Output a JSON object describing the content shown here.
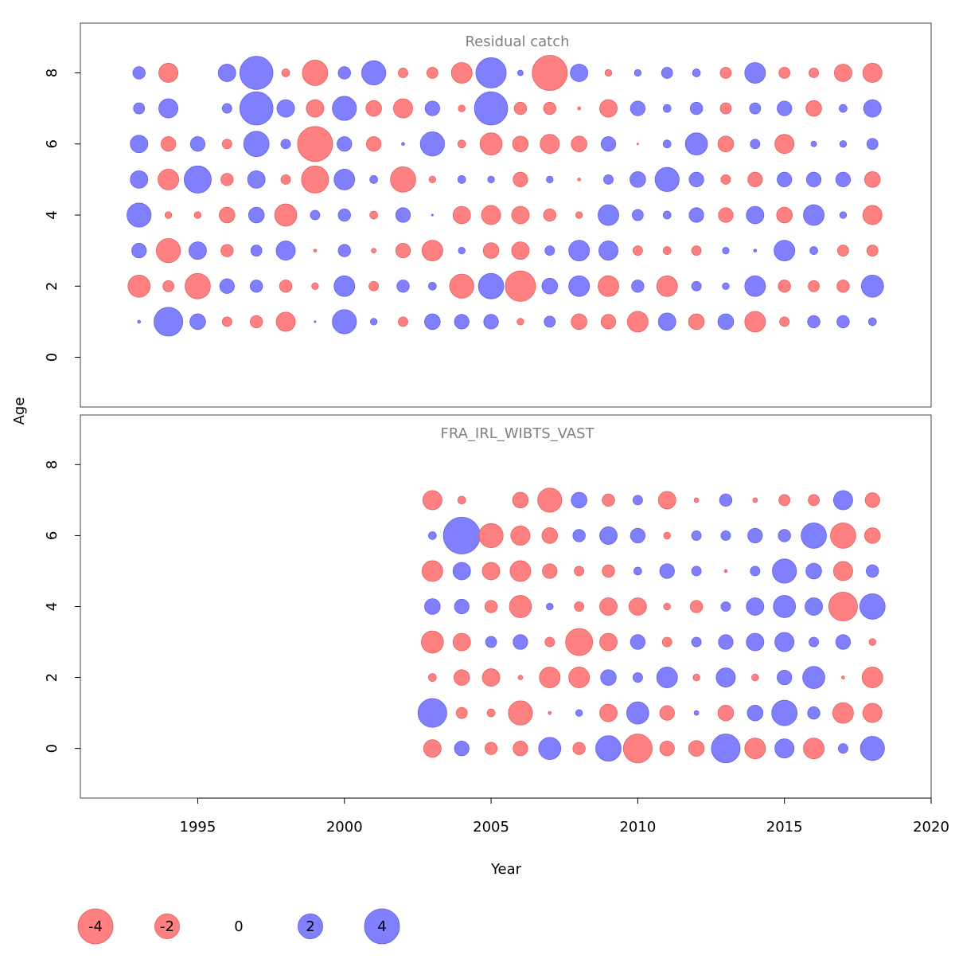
{
  "chart_data": [
    {
      "type": "bubble",
      "title": "Residual catch",
      "x": [
        1993,
        1994,
        1995,
        1996,
        1997,
        1998,
        1999,
        2000,
        2001,
        2002,
        2003,
        2004,
        2005,
        2006,
        2007,
        2008,
        2009,
        2010,
        2011,
        2012,
        2013,
        2014,
        2015,
        2016,
        2017,
        2018
      ],
      "y": [
        1,
        2,
        3,
        4,
        5,
        6,
        7,
        8
      ],
      "values": [
        [
          0.03,
          2.7,
          0.8,
          -0.3,
          -0.5,
          -1.2,
          0.01,
          1.9,
          0.15,
          -0.3,
          0.8,
          0.7,
          0.7,
          -0.15,
          0.4,
          -0.8,
          -0.7,
          -1.4,
          1.0,
          -0.8,
          0.8,
          -1.4,
          -0.3,
          0.5,
          0.5,
          0.2
        ],
        [
          -1.6,
          -0.4,
          -2.1,
          0.7,
          0.5,
          -0.5,
          -0.15,
          1.4,
          -0.3,
          0.5,
          0.2,
          -1.9,
          2.1,
          -3.0,
          0.8,
          1.4,
          -1.4,
          0.5,
          -1.4,
          0.3,
          0.15,
          1.4,
          -0.5,
          -0.4,
          -0.5,
          1.6
        ],
        [
          0.7,
          -1.9,
          1.0,
          -0.5,
          0.4,
          1.2,
          -0.03,
          0.5,
          -0.07,
          -0.7,
          -1.4,
          0.15,
          -0.8,
          -1.0,
          0.3,
          1.4,
          1.2,
          -0.3,
          -0.2,
          -0.3,
          0.15,
          0.03,
          1.4,
          0.2,
          -0.4,
          -0.4
        ],
        [
          1.9,
          -0.15,
          -0.15,
          -0.8,
          0.8,
          -1.6,
          0.3,
          0.5,
          -0.2,
          0.7,
          0.01,
          -1.0,
          -1.2,
          -1.0,
          -0.5,
          -0.15,
          1.4,
          0.4,
          0.2,
          0.7,
          -0.7,
          1.0,
          -0.8,
          1.4,
          0.15,
          -1.2
        ],
        [
          1.0,
          -1.4,
          2.4,
          -0.5,
          1.0,
          -0.3,
          -2.4,
          1.4,
          0.2,
          -2.1,
          -0.15,
          0.2,
          0.15,
          -0.7,
          0.15,
          -0.03,
          0.3,
          0.8,
          1.9,
          0.7,
          -0.3,
          -0.7,
          0.7,
          0.7,
          0.7,
          -0.8
        ],
        [
          1.0,
          -0.7,
          0.7,
          -0.3,
          2.1,
          0.3,
          -4.0,
          0.7,
          -0.7,
          0.03,
          1.9,
          -0.2,
          -1.6,
          -0.8,
          -1.2,
          -0.8,
          0.7,
          -0.01,
          0.2,
          1.6,
          -0.8,
          0.3,
          -1.2,
          0.1,
          0.15,
          0.4
        ],
        [
          0.4,
          1.2,
          null,
          0.3,
          3.6,
          1.0,
          -1.0,
          1.9,
          -0.8,
          -1.2,
          0.7,
          -0.15,
          3.6,
          -0.5,
          -0.5,
          -0.03,
          -1.0,
          0.7,
          0.2,
          0.5,
          -0.4,
          0.4,
          0.7,
          -0.8,
          0.2,
          1.0
        ],
        [
          0.5,
          -1.2,
          null,
          1.0,
          3.6,
          -0.2,
          -2.1,
          0.5,
          1.9,
          -0.3,
          -0.4,
          -1.4,
          3.0,
          0.1,
          -4.0,
          1.0,
          -0.15,
          0.15,
          0.4,
          0.2,
          -0.4,
          1.4,
          -0.4,
          -0.3,
          -1.0,
          -1.2
        ]
      ],
      "xlim": [
        1991,
        2020
      ],
      "ylim": [
        -1.4,
        9.4
      ],
      "yticks": [
        0,
        2,
        4,
        6,
        8
      ],
      "pos_color": "#8080ff",
      "neg_color": "#ff8080"
    },
    {
      "type": "bubble",
      "title": "FRA_IRL_WIBTS_VAST",
      "x": [
        2003,
        2004,
        2005,
        2006,
        2007,
        2008,
        2009,
        2010,
        2011,
        2012,
        2013,
        2014,
        2015,
        2016,
        2017,
        2018
      ],
      "y": [
        0,
        1,
        2,
        3,
        4,
        5,
        6,
        7
      ],
      "values": [
        [
          -1.0,
          0.7,
          -0.5,
          -0.7,
          1.6,
          -0.5,
          2.1,
          -2.7,
          -0.7,
          -0.8,
          2.7,
          -1.4,
          1.2,
          -1.4,
          0.3,
          1.9
        ],
        [
          2.7,
          -0.4,
          -0.2,
          -1.9,
          -0.03,
          0.15,
          -1.0,
          1.6,
          -0.7,
          0.07,
          -0.8,
          0.8,
          2.1,
          0.5,
          -1.4,
          -1.2
        ],
        [
          -0.2,
          -0.8,
          -1.0,
          -0.07,
          -1.4,
          -1.4,
          0.8,
          0.3,
          1.4,
          -0.15,
          1.2,
          -0.15,
          0.7,
          1.6,
          -0.03,
          -1.4
        ],
        [
          -1.6,
          -1.0,
          0.4,
          0.7,
          -0.3,
          -2.4,
          -1.0,
          0.7,
          -0.3,
          0.3,
          0.7,
          1.0,
          1.2,
          0.3,
          0.7,
          -0.15
        ],
        [
          0.8,
          0.7,
          -0.5,
          -1.6,
          0.15,
          -0.3,
          -1.0,
          -1.0,
          -0.15,
          -0.5,
          0.3,
          1.0,
          1.6,
          1.0,
          -2.7,
          2.1
        ],
        [
          -1.4,
          1.0,
          -1.0,
          -1.4,
          -0.7,
          -0.3,
          -0.5,
          0.2,
          0.7,
          0.3,
          -0.03,
          0.3,
          1.9,
          0.8,
          -1.2,
          0.5
        ],
        [
          0.2,
          4.4,
          -1.9,
          -1.2,
          -0.8,
          0.5,
          1.0,
          0.7,
          -0.15,
          0.3,
          0.3,
          0.7,
          0.5,
          2.1,
          -2.1,
          -0.8
        ],
        [
          -1.2,
          -0.2,
          null,
          -0.8,
          -1.9,
          0.8,
          -0.5,
          0.3,
          -1.0,
          -0.07,
          0.5,
          -0.07,
          -0.4,
          -0.4,
          1.2,
          -0.7
        ]
      ],
      "xlim": [
        1991,
        2020
      ],
      "ylim": [
        -1.4,
        9.4
      ],
      "yticks": [
        0,
        2,
        4,
        6,
        8
      ],
      "xticks": [
        1995,
        2000,
        2005,
        2010,
        2015,
        2020
      ],
      "pos_color": "#8080ff",
      "neg_color": "#ff8080"
    }
  ],
  "xlabel": "Year",
  "ylabel": "Age",
  "size_legend": [
    -4,
    -2,
    0,
    2,
    4
  ]
}
